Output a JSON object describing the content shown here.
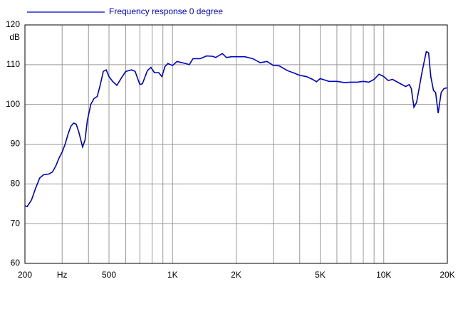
{
  "chart_data": {
    "type": "line",
    "log_x": true,
    "grid": true,
    "y_unit": "dB",
    "x": [
      200,
      205,
      215,
      225,
      235,
      245,
      260,
      270,
      280,
      290,
      300,
      310,
      320,
      330,
      340,
      350,
      360,
      375,
      385,
      395,
      410,
      425,
      440,
      455,
      470,
      485,
      500,
      520,
      545,
      570,
      600,
      640,
      665,
      700,
      720,
      760,
      790,
      820,
      860,
      890,
      920,
      950,
      1000,
      1050,
      1150,
      1200,
      1250,
      1350,
      1450,
      1550,
      1600,
      1720,
      1800,
      1900,
      2000,
      2200,
      2400,
      2600,
      2800,
      3000,
      3200,
      3500,
      3800,
      4000,
      4300,
      4600,
      4800,
      5000,
      5200,
      5500,
      6000,
      6500,
      7000,
      7500,
      8000,
      8500,
      9000,
      9500,
      10000,
      10500,
      11000,
      12000,
      12700,
      13200,
      13500,
      13900,
      14300,
      14700,
      15100,
      15500,
      15900,
      16300,
      16700,
      17200,
      17600,
      18100,
      18700,
      19300,
      20000
    ],
    "series": [
      {
        "name": "Frequency response 0 degree",
        "color": "#0000cc",
        "values": [
          74.5,
          74.3,
          76,
          79,
          81.5,
          82.3,
          82.5,
          83,
          84.5,
          86.5,
          88,
          90,
          92.5,
          94.5,
          95.3,
          95,
          93,
          89.3,
          91,
          96,
          100,
          101.5,
          102,
          105,
          108.3,
          108.7,
          107,
          105.8,
          104.8,
          106.5,
          108.3,
          108.7,
          108.3,
          105,
          105.2,
          108.5,
          109.3,
          108,
          108,
          107,
          109.5,
          110.3,
          109.8,
          110.8,
          110.3,
          110,
          111.5,
          111.5,
          112.2,
          112.1,
          111.8,
          112.8,
          111.8,
          112,
          112,
          112,
          111.5,
          110.5,
          110.8,
          109.8,
          109.7,
          108.5,
          107.8,
          107.3,
          107,
          106.3,
          105.7,
          106.5,
          106.2,
          105.8,
          105.8,
          105.5,
          105.6,
          105.6,
          105.8,
          105.6,
          106.3,
          107.6,
          107,
          106,
          106.3,
          105.2,
          104.5,
          105,
          104,
          99.3,
          100.5,
          104,
          107.5,
          110.5,
          113.3,
          113,
          107,
          103.5,
          103,
          97.8,
          103,
          104,
          104.2
        ]
      }
    ],
    "xlim": [
      200,
      20000
    ],
    "ylim": [
      60,
      120
    ],
    "xticks": [
      200,
      {
        "value": 300,
        "label": "Hz"
      },
      500,
      {
        "value": 1000,
        "label": "1K"
      },
      {
        "value": 2000,
        "label": "2K"
      },
      {
        "value": 5000,
        "label": "5K"
      },
      {
        "value": 10000,
        "label": "10K"
      },
      {
        "value": 20000,
        "label": "20K"
      }
    ],
    "xgrid": [
      300,
      400,
      500,
      600,
      700,
      800,
      900,
      1000,
      2000,
      3000,
      4000,
      5000,
      6000,
      7000,
      8000,
      9000,
      10000
    ],
    "yticks": [
      60,
      70,
      80,
      90,
      100,
      110,
      120
    ]
  }
}
